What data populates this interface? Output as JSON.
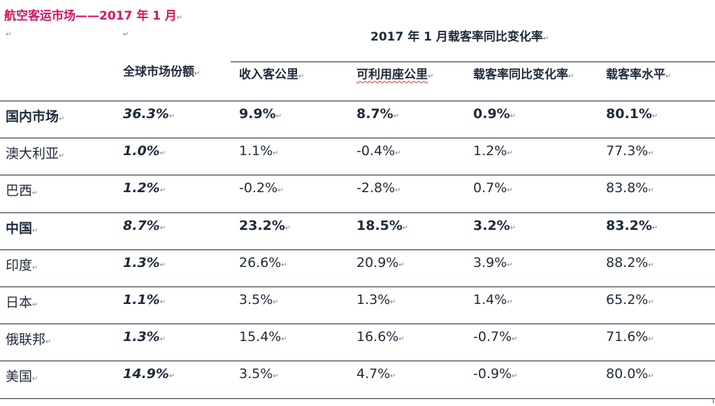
{
  "title": "航空客运市场——2017 年 1 月",
  "group_header": "2017 年 1 月载客率同比变化率",
  "columns": {
    "market_share": "全球市场份额",
    "rpk": "收入客公里",
    "ask": "可利用座公里",
    "plf_change": "载客率同比变化率",
    "plf_level": "载客率水平"
  },
  "rows": [
    {
      "name": "国内市场",
      "share": "36.3%",
      "rpk": "9.9%",
      "ask": "8.7%",
      "plf_change": "0.9%",
      "plf_level": "80.1%",
      "bold": true
    },
    {
      "name": "澳大利亚",
      "share": "1.0%",
      "rpk": "1.1%",
      "ask": "-0.4%",
      "plf_change": "1.2%",
      "plf_level": "77.3%",
      "bold": false
    },
    {
      "name": "巴西",
      "share": "1.2%",
      "rpk": "-0.2%",
      "ask": "-2.8%",
      "plf_change": "0.7%",
      "plf_level": "83.8%",
      "bold": false
    },
    {
      "name": "中国",
      "share": "8.7%",
      "rpk": "23.2%",
      "ask": "18.5%",
      "plf_change": "3.2%",
      "plf_level": "83.2%",
      "bold": true
    },
    {
      "name": "印度",
      "share": "1.3%",
      "rpk": "26.6%",
      "ask": "20.9%",
      "plf_change": "3.9%",
      "plf_level": "88.2%",
      "bold": false
    },
    {
      "name": "日本",
      "share": "1.1%",
      "rpk": "3.5%",
      "ask": "1.3%",
      "plf_change": "1.4%",
      "plf_level": "65.2%",
      "bold": false
    },
    {
      "name": "俄联邦",
      "share": "1.3%",
      "rpk": "15.4%",
      "ask": "16.6%",
      "plf_change": "-0.7%",
      "plf_level": "71.6%",
      "bold": false
    },
    {
      "name": "美国",
      "share": "14.9%",
      "rpk": "3.5%",
      "ask": "4.7%",
      "plf_change": "-0.9%",
      "plf_level": "80.0%",
      "bold": false
    }
  ],
  "colors": {
    "title": "#d6135f",
    "text": "#1f2a3a",
    "rule": "#1b2a41"
  },
  "paragraph_mark": "↵"
}
